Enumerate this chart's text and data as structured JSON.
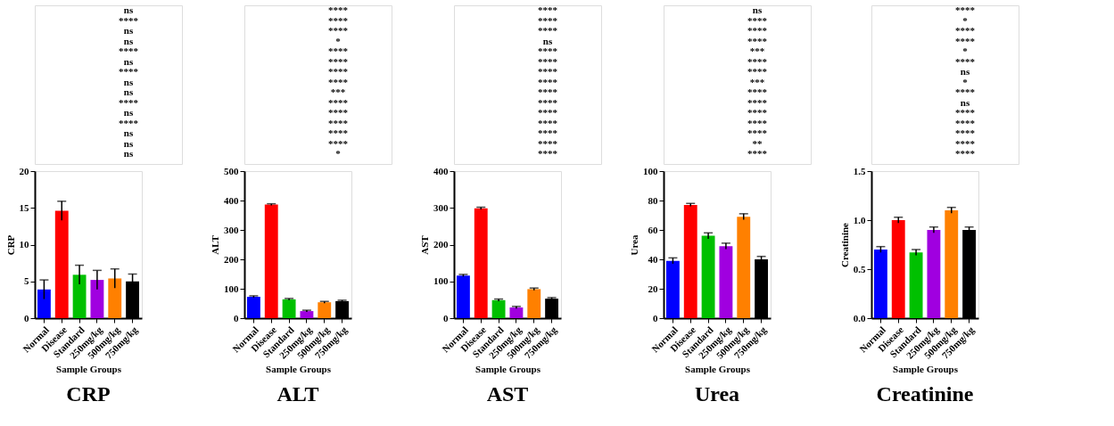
{
  "chart_data": [
    {
      "type": "bar",
      "title": "CRP",
      "xlabel": "Sample Groups",
      "ylabel": "CRP",
      "categories": [
        "Normal",
        "Disease",
        "Standard",
        "250mg/kg",
        "500mg/kg",
        "750mg/kg"
      ],
      "values": [
        3.9,
        14.6,
        5.9,
        5.2,
        5.4,
        5.0
      ],
      "errors": [
        1.3,
        1.3,
        1.3,
        1.3,
        1.3,
        1.0
      ],
      "colors": [
        "#0000ff",
        "#ff0000",
        "#00c000",
        "#a000e0",
        "#ff8000",
        "#000000"
      ],
      "ylim": [
        0,
        20
      ],
      "yticks": [
        0,
        5,
        10,
        15,
        20
      ],
      "annotations": [
        "ns",
        "****",
        "ns",
        "ns",
        "****",
        "ns",
        "****",
        "ns",
        "ns",
        "****",
        "ns",
        "****",
        "ns",
        "ns",
        "ns"
      ]
    },
    {
      "type": "bar",
      "title": "ALT",
      "xlabel": "Sample Groups",
      "ylabel": "ALT",
      "categories": [
        "Normal",
        "Disease",
        "Standard",
        "250mg/kg",
        "500mg/kg",
        "750mg/kg"
      ],
      "values": [
        73,
        386,
        64,
        24,
        54,
        58
      ],
      "errors": [
        3,
        3,
        3,
        3,
        3,
        3
      ],
      "colors": [
        "#0000ff",
        "#ff0000",
        "#00c000",
        "#a000e0",
        "#ff8000",
        "#000000"
      ],
      "ylim": [
        0,
        500
      ],
      "yticks": [
        0,
        100,
        200,
        300,
        400,
        500
      ],
      "annotations": [
        "****",
        "****",
        "****",
        "*",
        "****",
        "****",
        "****",
        "****",
        "***",
        "****",
        "****",
        "****",
        "****",
        "****",
        "*"
      ]
    },
    {
      "type": "bar",
      "title": "AST",
      "xlabel": "Sample Groups",
      "ylabel": "AST",
      "categories": [
        "Normal",
        "Disease",
        "Standard",
        "250mg/kg",
        "500mg/kg",
        "750mg/kg"
      ],
      "values": [
        116,
        299,
        49,
        29,
        79,
        53
      ],
      "errors": [
        3,
        3,
        3,
        3,
        3,
        3
      ],
      "colors": [
        "#0000ff",
        "#ff0000",
        "#00c000",
        "#a000e0",
        "#ff8000",
        "#000000"
      ],
      "ylim": [
        0,
        400
      ],
      "yticks": [
        0,
        100,
        200,
        300,
        400
      ],
      "annotations": [
        "****",
        "****",
        "****",
        "ns",
        "****",
        "****",
        "****",
        "****",
        "****",
        "****",
        "****",
        "****",
        "****",
        "****",
        "****"
      ]
    },
    {
      "type": "bar",
      "title": "Urea",
      "xlabel": "Sample Groups",
      "ylabel": "Urea",
      "categories": [
        "Normal",
        "Disease",
        "Standard",
        "250mg/kg",
        "500mg/kg",
        "750mg/kg"
      ],
      "values": [
        39,
        77,
        56,
        49,
        69,
        40
      ],
      "errors": [
        2,
        1,
        2,
        2,
        2,
        2
      ],
      "colors": [
        "#0000ff",
        "#ff0000",
        "#00c000",
        "#a000e0",
        "#ff8000",
        "#000000"
      ],
      "ylim": [
        0,
        100
      ],
      "yticks": [
        0,
        20,
        40,
        60,
        80,
        100
      ],
      "annotations": [
        "ns",
        "****",
        "****",
        "****",
        "***",
        "****",
        "****",
        "***",
        "****",
        "****",
        "****",
        "****",
        "****",
        "**",
        "****"
      ]
    },
    {
      "type": "bar",
      "title": "Creatinine",
      "xlabel": "Sample Groups",
      "ylabel": "Creatinine",
      "categories": [
        "Normal",
        "Disease",
        "Standard",
        "250mg/kg",
        "500mg/kg",
        "750mg/kg"
      ],
      "values": [
        0.7,
        1.0,
        0.67,
        0.9,
        1.1,
        0.9
      ],
      "errors": [
        0.03,
        0.03,
        0.03,
        0.03,
        0.03,
        0.03
      ],
      "colors": [
        "#0000ff",
        "#ff0000",
        "#00c000",
        "#a000e0",
        "#ff8000",
        "#000000"
      ],
      "ylim": [
        0,
        1.5
      ],
      "yticks": [
        {
          "value": 0,
          "label": "0.0"
        },
        {
          "value": 0.5,
          "label": "0.5"
        },
        {
          "value": 1,
          "label": "1.0"
        },
        {
          "value": 1.5,
          "label": "1.5"
        }
      ],
      "annotations": [
        "****",
        "*",
        "****",
        "****",
        "*",
        "****",
        "ns",
        "*",
        "****",
        "ns",
        "****",
        "****",
        "****",
        "****",
        "****"
      ]
    }
  ]
}
